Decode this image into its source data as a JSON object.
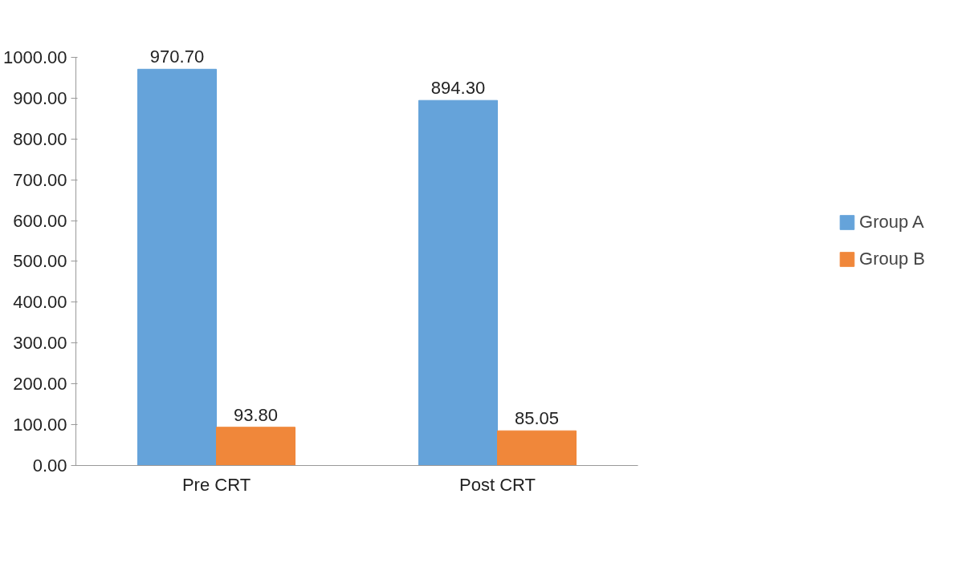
{
  "chart_data": {
    "type": "bar",
    "categories": [
      "Pre CRT",
      "Post CRT"
    ],
    "series": [
      {
        "name": "Group A",
        "color": "#65a3da",
        "values": [
          970.7,
          894.3
        ],
        "value_labels": [
          "970.70",
          "894.30"
        ]
      },
      {
        "name": "Group B",
        "color": "#f0873a",
        "values": [
          93.8,
          85.05
        ],
        "value_labels": [
          "93.80",
          "85.05"
        ]
      }
    ],
    "ylim": [
      0,
      1000
    ],
    "yticks": [
      {
        "value": 0,
        "label": "0.00"
      },
      {
        "value": 100,
        "label": "100.00"
      },
      {
        "value": 200,
        "label": "200.00"
      },
      {
        "value": 300,
        "label": "300.00"
      },
      {
        "value": 400,
        "label": "400.00"
      },
      {
        "value": 500,
        "label": "500.00"
      },
      {
        "value": 600,
        "label": "600.00"
      },
      {
        "value": 700,
        "label": "700.00"
      },
      {
        "value": 800,
        "label": "800.00"
      },
      {
        "value": 900,
        "label": "900.00"
      },
      {
        "value": 1000,
        "label": "1000.00"
      }
    ],
    "grid": false,
    "legend": "right"
  }
}
